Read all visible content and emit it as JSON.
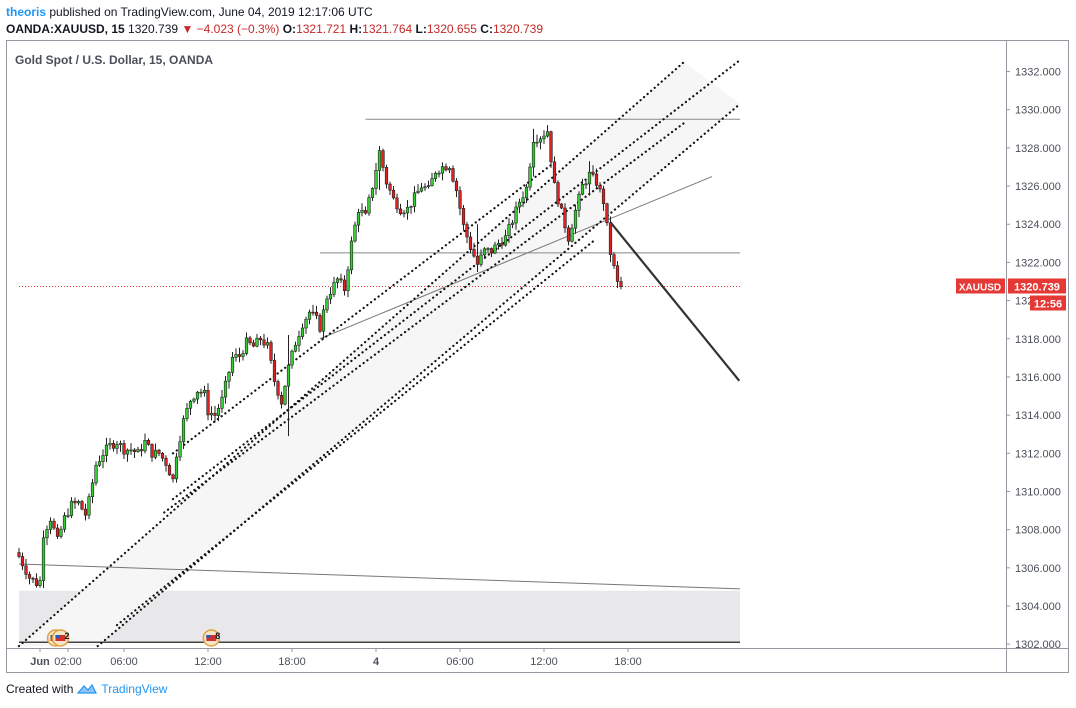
{
  "header": {
    "user": "theoris",
    "published_text": "published on TradingView.com, June 04, 2019 12:17:06 UTC",
    "symbol": "OANDA:XAUUSD, 15",
    "last": "1320.739",
    "change": "▼ −4.023 (−0.3%)",
    "o_label": "O:",
    "o_val": "1321.721",
    "h_label": "H:",
    "h_val": "1321.764",
    "l_label": "L:",
    "l_val": "1320.655",
    "c_label": "C:",
    "c_val": "1320.739"
  },
  "chart_title": "Gold Spot / U.S. Dollar, 15, OANDA",
  "price_tag": {
    "symbol": "XAUUSD",
    "price": "1320.739",
    "countdown": "12:56"
  },
  "footer": {
    "created_with": "Created with",
    "brand": "TradingView"
  },
  "colors": {
    "up": "#33cc33",
    "down": "#e02020",
    "accent": "#2196f3",
    "last_price": "#e53935"
  },
  "events": [
    {
      "label": "2",
      "time": 3.3
    },
    {
      "label": "2",
      "time": 4.7
    },
    {
      "label": "8",
      "time": 47.8
    }
  ],
  "chart_data": {
    "type": "candlestick",
    "title": "Gold Spot / U.S. Dollar, 15, OANDA",
    "interval": "15",
    "ylim": [
      1301.8,
      1333.6
    ],
    "y_ticks": [
      "1302.000",
      "1304.000",
      "1306.000",
      "1308.000",
      "1310.000",
      "1312.000",
      "1314.000",
      "1316.000",
      "1318.000",
      "1320.000",
      "1322.000",
      "1324.000",
      "1326.000",
      "1328.000",
      "1330.000",
      "1332.000"
    ],
    "x_ticks": [
      {
        "label": "Jun",
        "time": 0
      },
      {
        "label": "02:00",
        "time": 8
      },
      {
        "label": "06:00",
        "time": 24
      },
      {
        "label": "12:00",
        "time": 48
      },
      {
        "label": "18:00",
        "time": 72
      },
      {
        "label": "4",
        "time": 96
      },
      {
        "label": "06:00",
        "time": 120
      },
      {
        "label": "12:00",
        "time": 144
      },
      {
        "label": "18:00",
        "time": 168
      }
    ],
    "last_price": 1320.739,
    "close_anchors": [
      [
        -6,
        1306.6
      ],
      [
        -3,
        1305.5
      ],
      [
        -1,
        1305.2
      ],
      [
        0,
        1305.3
      ],
      [
        1,
        1307.8
      ],
      [
        3,
        1308.6
      ],
      [
        5,
        1307.4
      ],
      [
        7,
        1308.6
      ],
      [
        9,
        1309.3
      ],
      [
        11,
        1309.4
      ],
      [
        13,
        1308.8
      ],
      [
        14,
        1309.5
      ],
      [
        16,
        1311.4
      ],
      [
        18,
        1312.0
      ],
      [
        20,
        1312.4
      ],
      [
        22,
        1312.6
      ],
      [
        24,
        1312.2
      ],
      [
        26,
        1312.2
      ],
      [
        28,
        1312.0
      ],
      [
        30,
        1312.6
      ],
      [
        32,
        1312.0
      ],
      [
        34,
        1312.0
      ],
      [
        36,
        1311.5
      ],
      [
        38,
        1310.6
      ],
      [
        39,
        1312.0
      ],
      [
        41,
        1313.7
      ],
      [
        43,
        1314.8
      ],
      [
        45,
        1315.3
      ],
      [
        47,
        1315.1
      ],
      [
        48,
        1314.2
      ],
      [
        50,
        1314.0
      ],
      [
        52,
        1314.8
      ],
      [
        55,
        1317.0
      ],
      [
        57,
        1317.1
      ],
      [
        59,
        1317.8
      ],
      [
        61,
        1317.6
      ],
      [
        63,
        1318.0
      ],
      [
        65,
        1317.6
      ],
      [
        67,
        1315.8
      ],
      [
        69,
        1314.7
      ],
      [
        71,
        1316.5
      ],
      [
        73,
        1317.8
      ],
      [
        75,
        1318.8
      ],
      [
        77,
        1319.4
      ],
      [
        79,
        1319.0
      ],
      [
        80,
        1318.6
      ],
      [
        82,
        1320.2
      ],
      [
        85,
        1321.1
      ],
      [
        87,
        1320.6
      ],
      [
        89,
        1323.0
      ],
      [
        91,
        1324.8
      ],
      [
        93,
        1324.4
      ],
      [
        95,
        1326.0
      ],
      [
        97,
        1327.8
      ],
      [
        99,
        1326.2
      ],
      [
        101,
        1325.3
      ],
      [
        103,
        1324.8
      ],
      [
        105,
        1324.8
      ],
      [
        107,
        1325.4
      ],
      [
        109,
        1326.0
      ],
      [
        111,
        1325.8
      ],
      [
        113,
        1326.8
      ],
      [
        115,
        1327.0
      ],
      [
        117,
        1327.1
      ],
      [
        119,
        1325.8
      ],
      [
        121,
        1323.9
      ],
      [
        123,
        1322.8
      ],
      [
        125,
        1321.9
      ],
      [
        127,
        1322.6
      ],
      [
        129,
        1322.6
      ],
      [
        131,
        1323.0
      ],
      [
        133,
        1323.3
      ],
      [
        135,
        1324.2
      ],
      [
        137,
        1325.2
      ],
      [
        139,
        1325.9
      ],
      [
        141,
        1328.5
      ],
      [
        143,
        1328.6
      ],
      [
        145,
        1328.9
      ],
      [
        147,
        1326.0
      ],
      [
        149,
        1324.6
      ],
      [
        151,
        1323.3
      ],
      [
        153,
        1324.7
      ],
      [
        155,
        1326.0
      ],
      [
        157,
        1326.6
      ],
      [
        159,
        1326.2
      ],
      [
        161,
        1325.2
      ],
      [
        163,
        1322.5
      ],
      [
        165,
        1320.9
      ],
      [
        166,
        1320.739
      ]
    ],
    "highlight_candles": [
      {
        "time": 71,
        "low": 1312.9,
        "high": 1318.2
      },
      {
        "time": 97,
        "low": 1325.8,
        "high": 1328.1
      },
      {
        "time": 125,
        "low": 1321.5,
        "high": 1324.0
      },
      {
        "time": 141,
        "low": 1326.5,
        "high": 1329.0
      },
      {
        "time": 157,
        "low": 1325.5,
        "high": 1327.3
      }
    ],
    "drawings": {
      "hlines": [
        {
          "t1": 93,
          "t2": 200,
          "price": 1329.5
        },
        {
          "t1": 80,
          "t2": 200,
          "price": 1322.5
        },
        {
          "t1": -6,
          "t2": 200,
          "price": 1302.1
        }
      ],
      "zone": {
        "t1": -6,
        "t2": 200,
        "p1": 1304.8,
        "p2": 1302.1
      },
      "last_line": {
        "t1": -6,
        "t2": 200,
        "price": 1320.739
      },
      "trendlines": [
        {
          "t1": -6,
          "p1": 1306.2,
          "t2": 200,
          "p2": 1304.9,
          "style": "thin"
        },
        {
          "t1": 80,
          "p1": 1318.0,
          "t2": 192,
          "p2": 1326.5,
          "style": "thin"
        },
        {
          "t1": 163,
          "p1": 1324.1,
          "t2": 199.8,
          "p2": 1315.8,
          "style": "thick"
        },
        {
          "t1": -6,
          "p1": 1301.9,
          "t2": 184,
          "p2": 1332.5,
          "style": "dotted"
        },
        {
          "t1": 16.5,
          "p1": 1301.9,
          "t2": 200,
          "p2": 1330.3,
          "style": "dotted"
        },
        {
          "t1": 38,
          "p1": 1309.6,
          "t2": 200,
          "p2": 1332.6,
          "style": "dotted"
        },
        {
          "t1": 35.5,
          "p1": 1308.9,
          "t2": 184,
          "p2": 1329.3,
          "style": "dotted"
        },
        {
          "t1": 38,
          "p1": 1312.0,
          "t2": 146,
          "p2": 1327.1,
          "style": "dotted"
        },
        {
          "t1": 22,
          "p1": 1303.0,
          "t2": 158,
          "p2": 1323.1,
          "style": "dotted"
        }
      ],
      "channel": [
        [
          -6,
          1301.9
        ],
        [
          184,
          1332.5
        ],
        [
          200,
          1330.3
        ],
        [
          16.5,
          1301.9
        ]
      ]
    }
  }
}
